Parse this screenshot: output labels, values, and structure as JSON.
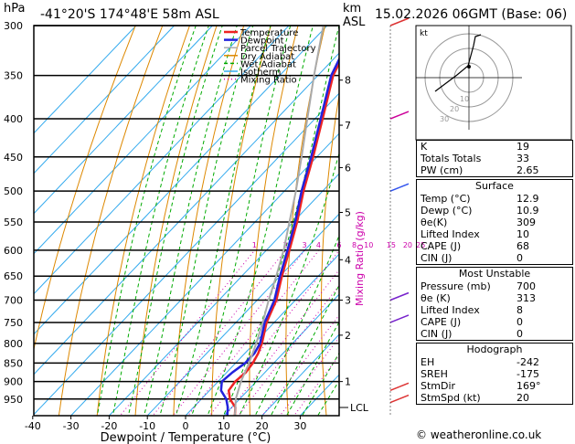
{
  "header": {
    "location": "-41°20'S  174°48'E  58m  ASL",
    "datetime": "15.02.2026  06GMT  (Base: 06)",
    "hpa_label": "hPa",
    "km_label": "km",
    "asl_label": "ASL"
  },
  "chart_data": {
    "type": "skew-t",
    "title": "-41°20'S 174°48'E 58m ASL",
    "xlabel": "Dewpoint / Temperature (°C)",
    "ylabel_left": "hPa",
    "ylabel_right": "Mixing Ratio (g/kg)",
    "pressure_levels": [
      300,
      350,
      400,
      450,
      500,
      550,
      600,
      650,
      700,
      750,
      800,
      850,
      900,
      950
    ],
    "temperature_ticks": [
      -40,
      -30,
      -20,
      -10,
      0,
      10,
      20,
      30
    ],
    "km_ticks": [
      {
        "p": 900,
        "km": "1"
      },
      {
        "p": 780,
        "km": "2"
      },
      {
        "p": 700,
        "km": "3"
      },
      {
        "p": 618,
        "km": "4"
      },
      {
        "p": 534,
        "km": "5"
      },
      {
        "p": 465,
        "km": "6"
      },
      {
        "p": 408,
        "km": "7"
      },
      {
        "p": 355,
        "km": "8"
      }
    ],
    "mixing_ratio_labels": [
      "1",
      "2",
      "3",
      "4",
      "6",
      "8",
      "10",
      "15",
      "20",
      "25"
    ],
    "mixing_ratio_values": [
      1,
      2,
      3,
      4,
      6,
      8,
      10,
      15,
      20,
      25
    ],
    "lcl_label": "LCL",
    "lcl_pressure": 975,
    "legend": [
      "Temperature",
      "Dewpoint",
      "Parcel Trajectory",
      "Dry Adiabat",
      "Wet Adiabat",
      "Isotherm",
      "Mixing Ratio"
    ],
    "series": [
      {
        "name": "Temperature",
        "color": "#ee2222",
        "points": [
          [
            1000,
            12.9
          ],
          [
            975,
            11
          ],
          [
            950,
            7.5
          ],
          [
            925,
            5
          ],
          [
            900,
            4.5
          ],
          [
            875,
            5
          ],
          [
            850,
            4.5
          ],
          [
            825,
            3.5
          ],
          [
            800,
            2
          ],
          [
            750,
            -2
          ],
          [
            700,
            -5
          ],
          [
            650,
            -9.5
          ],
          [
            600,
            -14
          ],
          [
            550,
            -19
          ],
          [
            500,
            -25
          ],
          [
            450,
            -31
          ],
          [
            400,
            -38
          ],
          [
            350,
            -46
          ],
          [
            300,
            -52
          ]
        ]
      },
      {
        "name": "Dewpoint",
        "color": "#2222dd",
        "points": [
          [
            1000,
            10.9
          ],
          [
            975,
            9
          ],
          [
            950,
            6.5
          ],
          [
            925,
            3
          ],
          [
            900,
            1
          ],
          [
            875,
            1.5
          ],
          [
            850,
            2.5
          ],
          [
            825,
            2.5
          ],
          [
            800,
            1.5
          ],
          [
            750,
            -2.5
          ],
          [
            700,
            -5.5
          ],
          [
            650,
            -10
          ],
          [
            600,
            -14.5
          ],
          [
            550,
            -19.5
          ],
          [
            500,
            -25.5
          ],
          [
            450,
            -31.5
          ],
          [
            400,
            -38.5
          ],
          [
            350,
            -46.5
          ],
          [
            300,
            -52.5
          ]
        ]
      },
      {
        "name": "Parcel Trajectory",
        "color": "#aaaaaa",
        "points": [
          [
            1000,
            12.9
          ],
          [
            975,
            11
          ],
          [
            950,
            9
          ],
          [
            900,
            6
          ],
          [
            850,
            3.5
          ],
          [
            800,
            0.5
          ],
          [
            750,
            -3
          ],
          [
            700,
            -7
          ],
          [
            650,
            -11
          ],
          [
            600,
            -15.5
          ],
          [
            550,
            -21
          ],
          [
            500,
            -27
          ],
          [
            450,
            -34
          ],
          [
            400,
            -42
          ],
          [
            350,
            -51
          ],
          [
            300,
            -61
          ]
        ]
      }
    ]
  },
  "winds": [
    {
      "p": 300,
      "color": "#dd3333"
    },
    {
      "p": 400,
      "color": "#cc0099"
    },
    {
      "p": 500,
      "color": "#3355ee"
    },
    {
      "p": 700,
      "color": "#7722cc"
    },
    {
      "p": 750,
      "color": "#7722cc"
    },
    {
      "p": 925,
      "color": "#dd3333"
    },
    {
      "p": 960,
      "color": "#dd3333"
    }
  ],
  "hodograph": {
    "unit": "kt",
    "ring_labels": [
      "10",
      "20",
      "30"
    ],
    "storm_motion": "169°/20kt"
  },
  "indices": [
    {
      "label": "K",
      "value": "19"
    },
    {
      "label": "Totals Totals",
      "value": "33"
    },
    {
      "label": "PW (cm)",
      "value": "2.65"
    }
  ],
  "surface": {
    "title": "Surface",
    "rows": [
      {
        "label": "Temp (°C)",
        "value": "12.9"
      },
      {
        "label": "Dewp (°C)",
        "value": "10.9"
      },
      {
        "label": "θe(K)",
        "value": "309"
      },
      {
        "label": "Lifted Index",
        "value": "10"
      },
      {
        "label": "CAPE (J)",
        "value": "68"
      },
      {
        "label": "CIN (J)",
        "value": "0"
      }
    ]
  },
  "most_unstable": {
    "title": "Most Unstable",
    "rows": [
      {
        "label": "Pressure (mb)",
        "value": "700"
      },
      {
        "label": "θe (K)",
        "value": "313"
      },
      {
        "label": "Lifted Index",
        "value": "8"
      },
      {
        "label": "CAPE (J)",
        "value": "0"
      },
      {
        "label": "CIN (J)",
        "value": "0"
      }
    ]
  },
  "hodograph_table": {
    "title": "Hodograph",
    "rows": [
      {
        "label": "EH",
        "value": "-242"
      },
      {
        "label": "SREH",
        "value": "-175"
      },
      {
        "label": "StmDir",
        "value": "169°"
      },
      {
        "label": "StmSpd (kt)",
        "value": "20"
      }
    ]
  },
  "copyright": "© weatheronline.co.uk",
  "colors": {
    "temperature": "#ee2222",
    "dewpoint": "#2222dd",
    "parcel": "#aaaaaa",
    "dry_adiabat": "#dd8800",
    "wet_adiabat": "#00aa00",
    "isotherm": "#33aaee",
    "mixing": "#cc00aa"
  }
}
